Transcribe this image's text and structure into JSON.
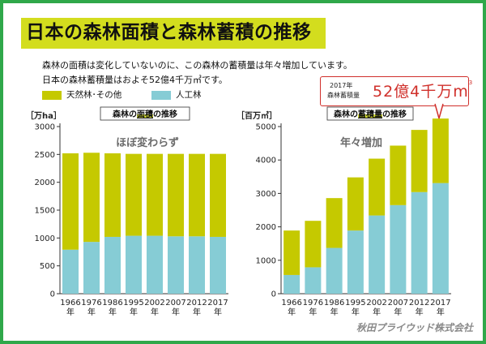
{
  "page": {
    "title": "日本の森林面積と森林蓄積の推移",
    "desc_line1": "森林の面積は変化していないのに、この森林の蓄積量は年々増加しています。",
    "desc_line2": "日本の森林蓄積量はおよそ52億4千万㎥です。",
    "brand": "秋田プライウッド株式会社"
  },
  "callout": {
    "line1": "2017年",
    "line2": "森林蓄積量",
    "big": "52億4千万m",
    "sup": "3"
  },
  "colors": {
    "natural": "#c5c900",
    "planted": "#86ccd5",
    "accent": "#d0302b",
    "frame": "#2fa84a",
    "title_band": "#d3dd1e"
  },
  "legend": [
    {
      "label": "天然林･その他",
      "color": "#c5c900"
    },
    {
      "label": "人工林",
      "color": "#86ccd5"
    }
  ],
  "chart_data": [
    {
      "type": "bar",
      "title": "森林の面積の推移",
      "title_highlight": "面積",
      "ylabel": "［万ha］",
      "annotation": "ほぼ変わらず",
      "categories": [
        "1966年",
        "1976年",
        "1986年",
        "1995年",
        "2002年",
        "2007年",
        "2012年",
        "2017年"
      ],
      "ylim": [
        0,
        3000
      ],
      "yticks": [
        "0",
        "500",
        "1000",
        "1500",
        "2000",
        "2500",
        "3000"
      ],
      "stacked": true,
      "grid": false,
      "series": [
        {
          "name": "人工林",
          "values": [
            790,
            930,
            1020,
            1040,
            1040,
            1030,
            1030,
            1020
          ]
        },
        {
          "name": "天然林･その他",
          "values": [
            1730,
            1600,
            1500,
            1470,
            1470,
            1480,
            1480,
            1490
          ]
        }
      ]
    },
    {
      "type": "bar",
      "title": "森林の蓄積量の推移",
      "title_highlight": "蓄積量",
      "ylabel": "［百万㎥］",
      "annotation": "年々増加",
      "categories": [
        "1966年",
        "1976年",
        "1986年",
        "1995年",
        "2002年",
        "2007年",
        "2012年",
        "2017年"
      ],
      "ylim": [
        0,
        5000
      ],
      "yticks": [
        "0",
        "1000",
        "2000",
        "3000",
        "4000",
        "5000"
      ],
      "stacked": true,
      "grid": false,
      "series": [
        {
          "name": "人工林",
          "values": [
            560,
            790,
            1370,
            1890,
            2340,
            2650,
            3040,
            3310
          ]
        },
        {
          "name": "天然林･その他",
          "values": [
            1330,
            1390,
            1490,
            1590,
            1700,
            1780,
            1860,
            1930
          ]
        }
      ]
    }
  ]
}
